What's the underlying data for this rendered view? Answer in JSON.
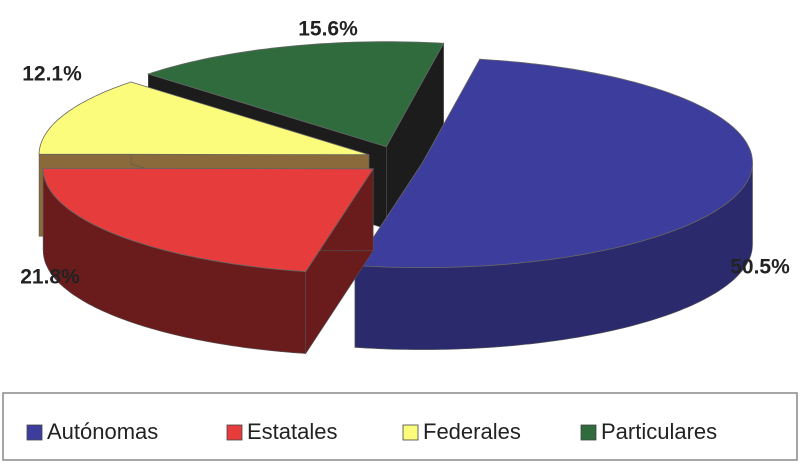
{
  "chart_data": {
    "type": "pie",
    "categories": [
      "Autónomas",
      "Estatales",
      "Federales",
      "Particulares"
    ],
    "values": [
      50.5,
      21.8,
      12.1,
      15.6
    ],
    "value_labels": [
      "50.5%",
      "21.8%",
      "12.1%",
      "15.6%"
    ],
    "colors": [
      "#3d3d9e",
      "#e63c3c",
      "#fcfc7c",
      "#2f6b3c"
    ],
    "legend": "bottom"
  }
}
